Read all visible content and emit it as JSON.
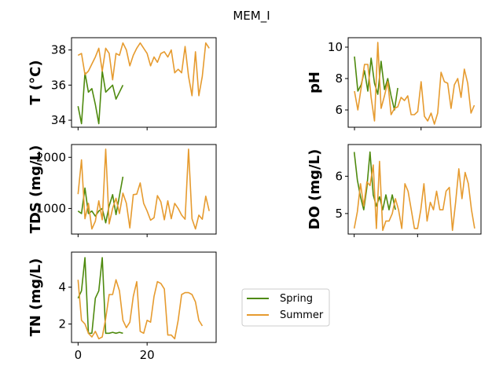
{
  "chart_data": {
    "type": "line",
    "title": "MEM_I",
    "legend": {
      "placement": "center-right",
      "entries": [
        {
          "name": "Spring",
          "color": "#4e8a0e"
        },
        {
          "name": "Summer",
          "color": "#e69b2f"
        }
      ]
    },
    "panels": [
      {
        "ylabel": "T  (°C)",
        "ylim": [
          33.6,
          38.7
        ],
        "yticks": [
          34,
          36,
          38
        ],
        "ytick_labels": [
          "34",
          "36",
          "38"
        ],
        "show_xticklabels": false,
        "series": [
          {
            "name": "Spring",
            "values": [
              34.8,
              33.8,
              36.7,
              35.6,
              35.8,
              34.9,
              33.8,
              36.8,
              35.6,
              35.8,
              36.0,
              35.2,
              35.6,
              36.0
            ]
          },
          {
            "name": "Summer",
            "values": [
              37.7,
              37.8,
              36.6,
              36.8,
              37.2,
              37.6,
              38.1,
              36.8,
              38.1,
              37.8,
              36.3,
              37.8,
              37.7,
              38.4,
              38.0,
              37.1,
              37.7,
              38.1,
              38.4,
              38.1,
              37.8,
              37.1,
              37.6,
              37.3,
              37.8,
              37.9,
              37.6,
              38.0,
              36.7,
              36.9,
              36.7,
              38.2,
              36.5,
              35.4,
              37.9,
              35.4,
              36.5,
              38.4,
              38.1
            ]
          }
        ]
      },
      {
        "ylabel": "pH",
        "ylim": [
          4.9,
          10.6
        ],
        "yticks": [
          6,
          8,
          10
        ],
        "ytick_labels": [
          "6",
          "8",
          "10"
        ],
        "show_xticklabels": false,
        "series": [
          {
            "name": "Spring",
            "values": [
              9.4,
              7.2,
              7.6,
              8.5,
              7.2,
              9.3,
              7.7,
              7.0,
              9.1,
              7.3,
              8.0,
              6.9,
              6.0,
              7.4
            ]
          },
          {
            "name": "Summer",
            "values": [
              7.2,
              6.0,
              7.4,
              8.9,
              8.9,
              6.8,
              5.3,
              10.3,
              6.1,
              6.9,
              7.8,
              5.7,
              6.1,
              6.2,
              6.8,
              6.6,
              6.9,
              5.7,
              5.7,
              5.9,
              7.8,
              5.6,
              5.3,
              5.8,
              5.1,
              5.8,
              8.4,
              7.8,
              7.7,
              6.1,
              7.6,
              8.0,
              6.8,
              8.6,
              7.7,
              5.8,
              6.3
            ]
          }
        ]
      },
      {
        "ylabel": "TDS (mg/L)",
        "ylim": [
          500,
          2250
        ],
        "yticks": [
          1000,
          2000
        ],
        "ytick_labels": [
          "1000",
          "2000"
        ],
        "show_xticklabels": false,
        "series": [
          {
            "name": "Spring",
            "values": [
              950,
              900,
              1400,
              900,
              950,
              850,
              950,
              1000,
              720,
              1050,
              1270,
              880,
              1250,
              1620
            ]
          },
          {
            "name": "Summer",
            "values": [
              1280,
              1950,
              800,
              1100,
              600,
              750,
              1150,
              780,
              2160,
              700,
              1000,
              1200,
              900,
              1300,
              1100,
              620,
              1270,
              1280,
              1500,
              1100,
              950,
              770,
              820,
              1250,
              1130,
              780,
              1150,
              800,
              1100,
              1000,
              870,
              790,
              2160,
              800,
              600,
              870,
              790,
              1240,
              950
            ]
          }
        ]
      },
      {
        "ylabel": "DO (mg/L)",
        "ylim": [
          4.45,
          6.85
        ],
        "yticks": [
          5,
          6
        ],
        "ytick_labels": [
          "5",
          "6"
        ],
        "show_xticklabels": false,
        "series": [
          {
            "name": "Spring",
            "values": [
              6.65,
              5.9,
              5.45,
              5.1,
              5.7,
              6.65,
              5.5,
              5.2,
              5.45,
              5.1,
              5.5,
              5.1,
              5.5,
              5.1
            ]
          },
          {
            "name": "Summer",
            "values": [
              4.6,
              5.05,
              5.8,
              5.2,
              5.85,
              5.75,
              6.3,
              4.6,
              6.4,
              4.55,
              4.8,
              4.8,
              5.0,
              5.4,
              5.1,
              4.6,
              5.8,
              5.6,
              5.1,
              4.6,
              4.6,
              5.1,
              5.8,
              4.8,
              5.3,
              5.1,
              5.6,
              5.1,
              5.1,
              5.6,
              5.7,
              4.55,
              5.3,
              6.2,
              5.4,
              6.1,
              5.8,
              5.1,
              4.6
            ]
          }
        ]
      },
      {
        "ylabel": "TN (mg/L)",
        "ylim": [
          1.0,
          5.9
        ],
        "yticks": [
          2,
          4
        ],
        "ytick_labels": [
          "2",
          "4"
        ],
        "show_xticklabels": true,
        "xticks": [
          0,
          20
        ],
        "xtick_labels": [
          "0",
          "20"
        ],
        "series": [
          {
            "name": "Spring",
            "values": [
              3.4,
              3.8,
              5.6,
              1.5,
              1.5,
              3.4,
              3.8,
              5.6,
              1.5,
              1.5,
              1.55,
              1.5,
              1.55,
              1.5
            ]
          },
          {
            "name": "Summer",
            "values": [
              4.4,
              2.2,
              2.0,
              1.5,
              1.3,
              1.6,
              1.2,
              1.3,
              2.3,
              3.6,
              3.6,
              4.4,
              3.8,
              2.2,
              1.8,
              2.1,
              3.5,
              4.3,
              1.6,
              1.5,
              2.2,
              2.1,
              3.5,
              4.3,
              4.2,
              3.9,
              1.4,
              1.4,
              1.2,
              2.2,
              3.6,
              3.7,
              3.7,
              3.6,
              3.2,
              2.2,
              1.9
            ]
          }
        ]
      }
    ]
  }
}
